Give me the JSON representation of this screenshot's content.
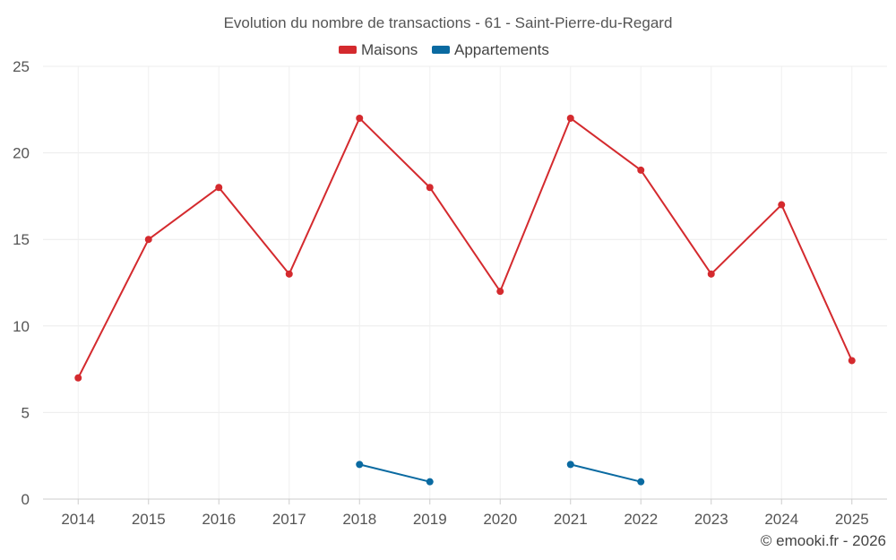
{
  "chart_data": {
    "type": "line",
    "title": "Evolution du nombre de transactions - 61 - Saint-Pierre-du-Regard",
    "categories": [
      "2014",
      "2015",
      "2016",
      "2017",
      "2018",
      "2019",
      "2020",
      "2021",
      "2022",
      "2023",
      "2024",
      "2025"
    ],
    "yticks": [
      "0",
      "5",
      "10",
      "15",
      "20",
      "25"
    ],
    "ylim": [
      0,
      25
    ],
    "grid": true,
    "legend_position": "top-center",
    "series": [
      {
        "name": "Maisons",
        "color": "#d42a2e",
        "values": [
          7,
          15,
          18,
          13,
          22,
          18,
          12,
          22,
          19,
          13,
          17,
          8
        ]
      },
      {
        "name": "Appartements",
        "color": "#0a6aa1",
        "values": [
          null,
          null,
          null,
          null,
          2,
          1,
          null,
          2,
          1,
          null,
          null,
          null
        ]
      }
    ],
    "credit": "© emooki.fr - 2026"
  }
}
